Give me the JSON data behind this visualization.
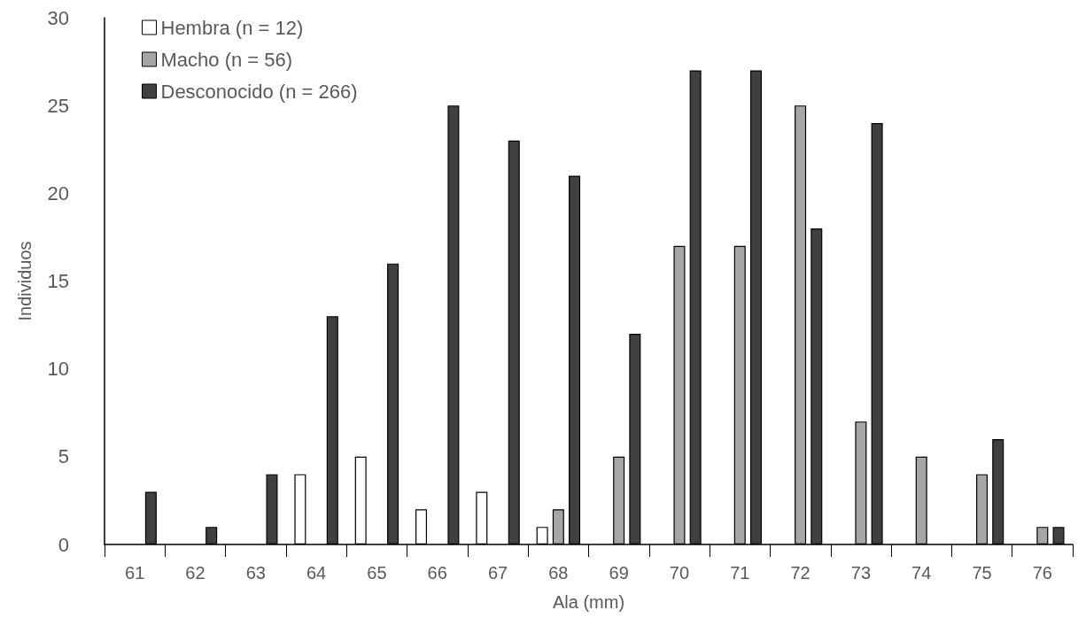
{
  "chart_data": {
    "type": "bar",
    "xlabel": "Ala (mm)",
    "ylabel": "Individuos",
    "categories": [
      "61",
      "62",
      "63",
      "64",
      "65",
      "66",
      "67",
      "68",
      "69",
      "70",
      "71",
      "72",
      "73",
      "74",
      "75",
      "76"
    ],
    "series": [
      {
        "name": "Hembra (n = 12)",
        "color": "#ffffff",
        "values": [
          0,
          0,
          0,
          4,
          5,
          2,
          3,
          1,
          0,
          0,
          0,
          0,
          0,
          0,
          0,
          0
        ]
      },
      {
        "name": "Macho (n = 56)",
        "color": "#a6a6a6",
        "values": [
          0,
          0,
          0,
          0,
          0,
          0,
          0,
          2,
          5,
          17,
          17,
          25,
          7,
          5,
          4,
          1
        ]
      },
      {
        "name": "Desconocido (n = 266)",
        "color": "#404040",
        "values": [
          3,
          1,
          4,
          13,
          16,
          25,
          23,
          21,
          12,
          27,
          27,
          18,
          24,
          0,
          6,
          1
        ]
      }
    ],
    "ylim": [
      0,
      30
    ],
    "yticks": [
      0,
      5,
      10,
      15,
      20,
      25,
      30
    ],
    "grid": false,
    "legend": "top left"
  }
}
